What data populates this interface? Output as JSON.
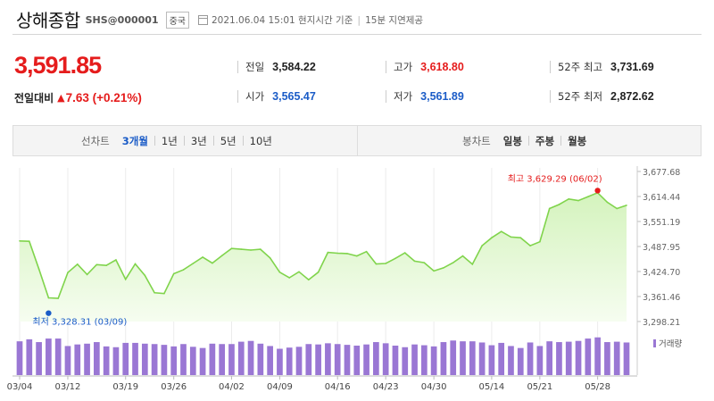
{
  "header": {
    "title": "상해종합",
    "code": "SHS@000001",
    "country": "중국",
    "timestamp": "2021.06.04 15:01 현지시간 기준",
    "separator": "|",
    "delay": "15분 지연제공"
  },
  "quote": {
    "price": "3,591.85",
    "change_label": "전일대비",
    "change_icon": "▲",
    "change": "7.63 (+0.21%)"
  },
  "stats": {
    "prev_close": {
      "label": "전일",
      "value": "3,584.22"
    },
    "open": {
      "label": "시가",
      "value": "3,565.47"
    },
    "high": {
      "label": "고가",
      "value": "3,618.80"
    },
    "low": {
      "label": "저가",
      "value": "3,561.89"
    },
    "high52": {
      "label": "52주 최고",
      "value": "3,731.69"
    },
    "low52": {
      "label": "52주 최저",
      "value": "2,872.62"
    }
  },
  "tabs": {
    "line_label": "선차트",
    "line_periods": [
      "3개월",
      "1년",
      "3년",
      "5년",
      "10년"
    ],
    "active_period": "3개월",
    "candle_label": "봉차트",
    "candle_periods": [
      "일봉",
      "주봉",
      "월봉"
    ]
  },
  "colors": {
    "line": "#80d44c",
    "fill_top": "#d4f3bd",
    "fill_bottom": "#f6fdf0",
    "volume": "#9a77d4",
    "up": "#e51c1c",
    "down": "#1b5cc7"
  },
  "chart_data": {
    "type": "area",
    "x_ticks": [
      "03/04",
      "03/12",
      "03/19",
      "03/26",
      "04/02",
      "04/09",
      "04/16",
      "04/23",
      "04/30",
      "05/14",
      "05/21",
      "05/28"
    ],
    "y_ticks": [
      "3,677.68",
      "3,614.44",
      "3,551.19",
      "3,487.95",
      "3,424.70",
      "3,361.46",
      "3,298.21"
    ],
    "ylim": [
      3298.21,
      3677.68
    ],
    "values": [
      3502,
      3501,
      3431,
      3358,
      3357,
      3422,
      3443,
      3417,
      3442,
      3440,
      3454,
      3405,
      3444,
      3415,
      3371,
      3369,
      3419,
      3429,
      3445,
      3461,
      3446,
      3465,
      3483,
      3481,
      3479,
      3481,
      3459,
      3423,
      3409,
      3424,
      3404,
      3423,
      3473,
      3471,
      3470,
      3464,
      3475,
      3444,
      3445,
      3458,
      3472,
      3451,
      3447,
      3426,
      3434,
      3447,
      3464,
      3443,
      3490,
      3510,
      3526,
      3512,
      3510,
      3490,
      3500,
      3584,
      3594,
      3608,
      3604,
      3614,
      3624,
      3600,
      3584,
      3592
    ],
    "high_annotation": {
      "label": "최고",
      "value": "3,629.29",
      "date": "06/02",
      "index": 60
    },
    "low_annotation": {
      "label": "최저",
      "value": "3,328.31",
      "date": "03/09",
      "index": 3
    },
    "volume_label": "거래량",
    "volume_lim": [
      0,
      100
    ],
    "volumes": [
      86,
      91,
      84,
      93,
      93,
      74,
      78,
      80,
      84,
      73,
      71,
      82,
      82,
      80,
      79,
      77,
      73,
      79,
      72,
      69,
      80,
      79,
      79,
      85,
      87,
      80,
      74,
      67,
      70,
      72,
      79,
      78,
      81,
      79,
      77,
      75,
      78,
      84,
      81,
      75,
      71,
      78,
      76,
      73,
      84,
      88,
      86,
      86,
      83,
      76,
      82,
      74,
      69,
      83,
      74,
      86,
      84,
      85,
      87,
      93,
      96,
      84,
      85,
      83
    ]
  }
}
